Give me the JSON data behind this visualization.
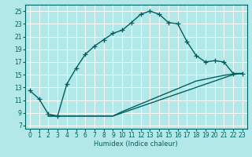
{
  "title": "",
  "xlabel": "Humidex (Indice chaleur)",
  "bg_color": "#b3e8e8",
  "grid_color": "#ffffff",
  "line_color": "#005f5f",
  "xlim": [
    -0.5,
    23.5
  ],
  "ylim": [
    6.5,
    26.0
  ],
  "xticks": [
    0,
    1,
    2,
    3,
    4,
    5,
    6,
    7,
    8,
    9,
    10,
    11,
    12,
    13,
    14,
    15,
    16,
    17,
    18,
    19,
    20,
    21,
    22,
    23
  ],
  "yticks": [
    7,
    9,
    11,
    13,
    15,
    17,
    19,
    21,
    23,
    25
  ],
  "curve_x": [
    0,
    1,
    2,
    3,
    4,
    5,
    6,
    7,
    8,
    9,
    10,
    11,
    12,
    13,
    14,
    15,
    16,
    17,
    18,
    19,
    20,
    21,
    22,
    23
  ],
  "curve_y": [
    12.5,
    11.2,
    8.8,
    8.5,
    13.5,
    16.0,
    18.2,
    19.5,
    20.5,
    21.5,
    22.0,
    23.2,
    24.5,
    25.0,
    24.5,
    23.2,
    23.0,
    20.2,
    18.0,
    17.0,
    17.2,
    17.0,
    15.2,
    15.2
  ],
  "line1_x": [
    2,
    3,
    4,
    5,
    6,
    7,
    8,
    9,
    10,
    11,
    12,
    13,
    14,
    15,
    16,
    17,
    18,
    19,
    20,
    21,
    22,
    23
  ],
  "line1_y": [
    8.5,
    8.5,
    8.5,
    8.5,
    8.5,
    8.5,
    8.5,
    8.5,
    9.0,
    9.5,
    10.0,
    10.5,
    11.0,
    11.5,
    12.0,
    12.5,
    13.0,
    13.5,
    14.0,
    14.5,
    15.0,
    15.2
  ],
  "line2_x": [
    2,
    3,
    4,
    5,
    6,
    7,
    8,
    9,
    10,
    11,
    12,
    13,
    14,
    15,
    16,
    17,
    18,
    19,
    20,
    21,
    22,
    23
  ],
  "line2_y": [
    8.5,
    8.5,
    8.5,
    8.5,
    8.5,
    8.5,
    8.5,
    8.5,
    9.2,
    9.8,
    10.4,
    11.0,
    11.6,
    12.2,
    12.8,
    13.4,
    14.0,
    14.3,
    14.6,
    14.9,
    15.1,
    15.2
  ],
  "marker_size": 4,
  "line_width": 1.0,
  "tick_fontsize": 5.5
}
